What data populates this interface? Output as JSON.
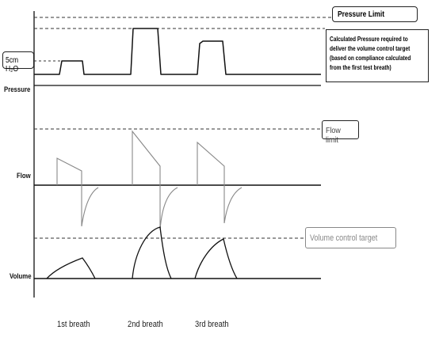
{
  "y_axis": {
    "pressure_label": "Pressure",
    "flow_label": "Flow",
    "volume_label": "Volume",
    "pressure_mark": "5cm H₂O"
  },
  "annotations": {
    "pressure_limit": "Pressure Limit",
    "calculated_pressure_lines": [
      "Calculated Pressure required to",
      "deliver the volume control target",
      "(based on compliance calculated",
      "from the first test breath)"
    ],
    "flow_limit": "Flow limit",
    "volume_target": "Volume control target"
  },
  "x_axis": {
    "breaths": [
      "1st breath",
      "2nd breath",
      "3rd breath"
    ]
  },
  "colors": {
    "line": "#111111",
    "dashed": "#333333",
    "flow_trace": "#888888",
    "volume_target_text": "#888888"
  }
}
